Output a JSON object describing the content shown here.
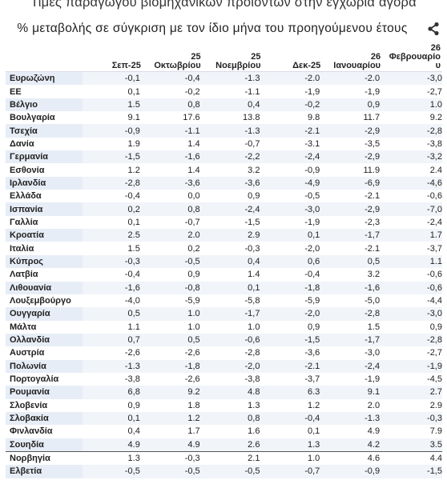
{
  "title": "Τιμές παραγωγού βιομηχανικών προϊόντων στην εγχώρια αγορά",
  "subtitle": "% μεταβολής σε σύγκριση με τον ίδιο μήνα του προηγούμενου έτους",
  "share_icon": "share-icon",
  "columns": [
    {
      "top": "",
      "bottom": "Σεπ-25"
    },
    {
      "top": "25",
      "bottom": "Οκτωβρίου"
    },
    {
      "top": "25",
      "bottom": "Νοεμβρίου"
    },
    {
      "top": "",
      "bottom": "Δεκ-25"
    },
    {
      "top": "26",
      "bottom": "Ιανουαρίου"
    },
    {
      "top": "26",
      "bottom": "Φεβρουαρίο υ"
    }
  ],
  "rows": [
    {
      "country": "Ευρωζώνη",
      "values": [
        "-0,1",
        "-0,4",
        "-1.3",
        "-2.0",
        "-2.0",
        "-3,0"
      ]
    },
    {
      "country": "ΕΕ",
      "values": [
        "0,1",
        "-0,2",
        "-1.1",
        "-1,9",
        "-1,9",
        "-2,7"
      ]
    },
    {
      "country": "Βέλγιο",
      "values": [
        "1.5",
        "0,8",
        "0,4",
        "-0,2",
        "0,9",
        "1.0"
      ]
    },
    {
      "country": "Βουλγαρία",
      "values": [
        "9.1",
        "17.6",
        "13.8",
        "9.8",
        "11.7",
        "9.2"
      ]
    },
    {
      "country": "Τσεχία",
      "values": [
        "-0,9",
        "-1.1",
        "-1.3",
        "-2.1",
        "-2,9",
        "-2,8"
      ]
    },
    {
      "country": "Δανία",
      "values": [
        "1.9",
        "1.4",
        "-0,7",
        "-3.1",
        "-3,5",
        "-3,8"
      ]
    },
    {
      "country": "Γερμανία",
      "values": [
        "-1,5",
        "-1,6",
        "-2,2",
        "-2,4",
        "-2,9",
        "-3,2"
      ]
    },
    {
      "country": "Εσθονία",
      "values": [
        "1.2",
        "1.4",
        "3.2",
        "-0,9",
        "11.9",
        "2.4"
      ]
    },
    {
      "country": "Ιρλανδία",
      "values": [
        "-2,8",
        "-3,6",
        "-3,6",
        "-4,9",
        "-6,9",
        "-4,6"
      ]
    },
    {
      "country": "Ελλάδα",
      "values": [
        "-0,4",
        "0,0",
        "0,9",
        "-0,5",
        "-2.1",
        "-0,6"
      ]
    },
    {
      "country": "Ισπανία",
      "values": [
        "0,2",
        "0,8",
        "-2,4",
        "-3,0",
        "-2,9",
        "-7,0"
      ]
    },
    {
      "country": "Γαλλία",
      "values": [
        "0,1",
        "-0,7",
        "-1,5",
        "-1,9",
        "-2,3",
        "-2,4"
      ]
    },
    {
      "country": "Κροατία",
      "values": [
        "2.5",
        "2.0",
        "2.9",
        "0,1",
        "-1,7",
        "1.7"
      ]
    },
    {
      "country": "Ιταλία",
      "values": [
        "1.5",
        "0,2",
        "-0,3",
        "-2,0",
        "-2.1",
        "-3,7"
      ]
    },
    {
      "country": "Κύπρος",
      "values": [
        "-0,3",
        "-0,5",
        "0,4",
        "0,6",
        "0,5",
        "1.1"
      ]
    },
    {
      "country": "Λατβία",
      "values": [
        "-0,4",
        "0,9",
        "1.4",
        "-0,4",
        "3.2",
        "-0,6"
      ]
    },
    {
      "country": "Λιθουανία",
      "values": [
        "-1,6",
        "-0,8",
        "0,1",
        "-1,8",
        "-1,6",
        "-0,6"
      ]
    },
    {
      "country": "Λουξεμβούργο",
      "values": [
        "-4,0",
        "-5,9",
        "-5,8",
        "-5,9",
        "-5,0",
        "-4,4"
      ]
    },
    {
      "country": "Ουγγαρία",
      "values": [
        "0,5",
        "1.0",
        "-1,7",
        "-2,0",
        "-2,8",
        "-3,0"
      ]
    },
    {
      "country": "Μάλτα",
      "values": [
        "1.1",
        "1.0",
        "1.0",
        "0,9",
        "1.5",
        "0,9"
      ]
    },
    {
      "country": "Ολλανδία",
      "values": [
        "0,7",
        "0,5",
        "-0,6",
        "-1,5",
        "-1,7",
        "-2,8"
      ]
    },
    {
      "country": "Αυστρία",
      "values": [
        "-2,6",
        "-2,6",
        "-2,8",
        "-3,6",
        "-3,0",
        "-2,7"
      ]
    },
    {
      "country": "Πολωνία",
      "values": [
        "-1.3",
        "-1,8",
        "-2,0",
        "-2.1",
        "-2,4",
        "-1,9"
      ]
    },
    {
      "country": "Πορτογαλία",
      "values": [
        "-3,8",
        "-2,6",
        "-3,8",
        "-3,7",
        "-1,9",
        "-4,5"
      ]
    },
    {
      "country": "Ρουμανία",
      "values": [
        "6,8",
        "9.2",
        "4.8",
        "6.3",
        "9.1",
        "2.7"
      ]
    },
    {
      "country": "Σλοβενία",
      "values": [
        "0,9",
        "1.8",
        "1.3",
        "1.2",
        "2.0",
        "2.9"
      ]
    },
    {
      "country": "Σλοβακία",
      "values": [
        "0,1",
        "1.2",
        "0,8",
        "-0,4",
        "-1.3",
        "-0,3"
      ]
    },
    {
      "country": "Φινλανδία",
      "values": [
        "0,4",
        "1.7",
        "1.6",
        "0,1",
        "4.9",
        "7.9"
      ]
    },
    {
      "country": "Σουηδία",
      "values": [
        "4.9",
        "4.9",
        "2.6",
        "1.3",
        "4.2",
        "3.5"
      ]
    },
    {
      "country": "Νορβηγία",
      "values": [
        "1.3",
        "-0,3",
        "2.1",
        "1.0",
        "4.6",
        "4.4"
      ]
    },
    {
      "country": "Ελβετία",
      "values": [
        "-0,5",
        "-0,5",
        "-0,5",
        "-0,7",
        "-0,9",
        "-1,5"
      ]
    }
  ]
}
